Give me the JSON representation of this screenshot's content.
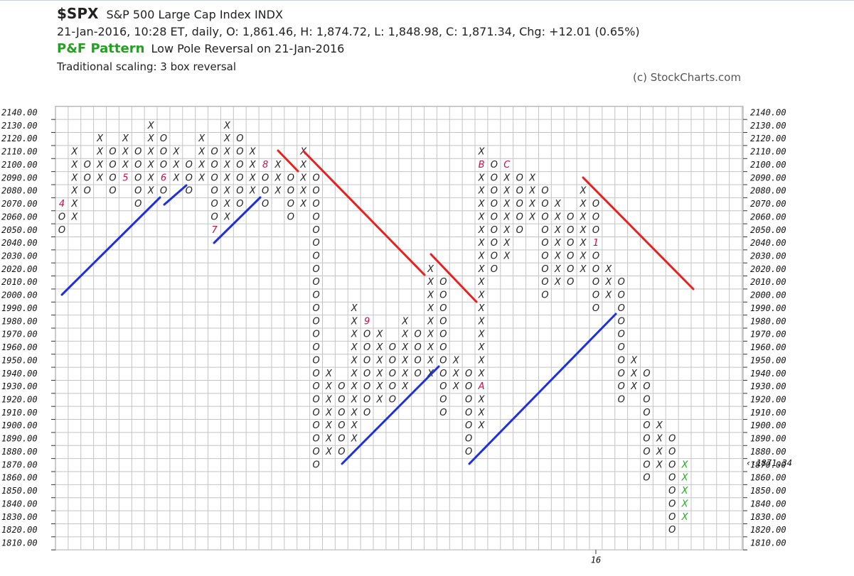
{
  "header": {
    "symbol": "$SPX",
    "name": "S&P 500 Large Cap Index  INDX",
    "quote": "21-Jan-2016, 10:28 ET, daily, O: 1,861.46, H: 1,874.72, L: 1,848.98, C: 1,871.34, Chg: +12.01 (0.65%)",
    "pattern_label": "P&F Pattern",
    "pattern": "Low Pole Reversal on 21-Jan-2016",
    "scaling": "Traditional scaling: 3 box reversal",
    "credit": "(c) StockCharts.com"
  },
  "chart_data": {
    "type": "pointfigure",
    "box_size": 10,
    "x_color": "#222222",
    "o_color": "#222222",
    "marker_color": "#c0104a",
    "last_column_color": "#22aa22",
    "ylim": [
      1810,
      2140
    ],
    "yticks": [
      {
        "value": 2140,
        "label": "2140.00"
      },
      {
        "value": 2130,
        "label": "2130.00"
      },
      {
        "value": 2120,
        "label": "2120.00"
      },
      {
        "value": 2110,
        "label": "2110.00"
      },
      {
        "value": 2100,
        "label": "2100.00"
      },
      {
        "value": 2090,
        "label": "2090.00"
      },
      {
        "value": 2080,
        "label": "2080.00"
      },
      {
        "value": 2070,
        "label": "2070.00"
      },
      {
        "value": 2060,
        "label": "2060.00"
      },
      {
        "value": 2050,
        "label": "2050.00"
      },
      {
        "value": 2040,
        "label": "2040.00"
      },
      {
        "value": 2030,
        "label": "2030.00"
      },
      {
        "value": 2020,
        "label": "2020.00"
      },
      {
        "value": 2010,
        "label": "2010.00"
      },
      {
        "value": 2000,
        "label": "2000.00"
      },
      {
        "value": 1990,
        "label": "1990.00"
      },
      {
        "value": 1980,
        "label": "1980.00"
      },
      {
        "value": 1970,
        "label": "1970.00"
      },
      {
        "value": 1960,
        "label": "1960.00"
      },
      {
        "value": 1950,
        "label": "1950.00"
      },
      {
        "value": 1940,
        "label": "1940.00"
      },
      {
        "value": 1930,
        "label": "1930.00"
      },
      {
        "value": 1920,
        "label": "1920.00"
      },
      {
        "value": 1910,
        "label": "1910.00"
      },
      {
        "value": 1900,
        "label": "1900.00"
      },
      {
        "value": 1890,
        "label": "1890.00"
      },
      {
        "value": 1880,
        "label": "1880.00"
      },
      {
        "value": 1870,
        "label": "1870.00",
        "color": "#c0104a"
      },
      {
        "value": 1860,
        "label": "1860.00"
      },
      {
        "value": 1850,
        "label": "1850.00"
      },
      {
        "value": 1840,
        "label": "1840.00"
      },
      {
        "value": 1830,
        "label": "1830.00"
      },
      {
        "value": 1820,
        "label": "1820.00"
      },
      {
        "value": 1810,
        "label": "1810.00"
      }
    ],
    "last_price": {
      "value": 1871.34,
      "label": "‹‹1871.34"
    },
    "x_labels": [
      {
        "column": 42,
        "label": "16"
      }
    ],
    "columns": [
      {
        "type": "O",
        "low": 2050,
        "high": 2070,
        "marks": [
          {
            "value": 2070,
            "label": "4"
          }
        ]
      },
      {
        "type": "X",
        "low": 2060,
        "high": 2110
      },
      {
        "type": "O",
        "low": 2080,
        "high": 2100
      },
      {
        "type": "X",
        "low": 2090,
        "high": 2120
      },
      {
        "type": "O",
        "low": 2080,
        "high": 2110
      },
      {
        "type": "X",
        "low": 2090,
        "high": 2120,
        "marks": [
          {
            "value": 2090,
            "label": "5"
          }
        ]
      },
      {
        "type": "O",
        "low": 2070,
        "high": 2110
      },
      {
        "type": "X",
        "low": 2080,
        "high": 2130
      },
      {
        "type": "O",
        "low": 2080,
        "high": 2120,
        "marks": [
          {
            "value": 2090,
            "label": "6"
          }
        ]
      },
      {
        "type": "X",
        "low": 2090,
        "high": 2110
      },
      {
        "type": "O",
        "low": 2080,
        "high": 2100
      },
      {
        "type": "X",
        "low": 2090,
        "high": 2120
      },
      {
        "type": "O",
        "low": 2050,
        "high": 2110,
        "marks": [
          {
            "value": 2050,
            "label": "7"
          }
        ]
      },
      {
        "type": "X",
        "low": 2060,
        "high": 2130
      },
      {
        "type": "O",
        "low": 2070,
        "high": 2120
      },
      {
        "type": "X",
        "low": 2080,
        "high": 2110
      },
      {
        "type": "O",
        "low": 2070,
        "high": 2100,
        "marks": [
          {
            "value": 2100,
            "label": "8"
          }
        ]
      },
      {
        "type": "X",
        "low": 2080,
        "high": 2100
      },
      {
        "type": "O",
        "low": 2060,
        "high": 2090
      },
      {
        "type": "X",
        "low": 2070,
        "high": 2110
      },
      {
        "type": "O",
        "low": 1870,
        "high": 2090
      },
      {
        "type": "X",
        "low": 1880,
        "high": 1940
      },
      {
        "type": "O",
        "low": 1880,
        "high": 1930
      },
      {
        "type": "X",
        "low": 1890,
        "high": 1990
      },
      {
        "type": "O",
        "low": 1910,
        "high": 1980,
        "marks": [
          {
            "value": 1980,
            "label": "9"
          }
        ]
      },
      {
        "type": "X",
        "low": 1920,
        "high": 1970
      },
      {
        "type": "O",
        "low": 1920,
        "high": 1960
      },
      {
        "type": "X",
        "low": 1930,
        "high": 1980
      },
      {
        "type": "O",
        "low": 1940,
        "high": 1970
      },
      {
        "type": "X",
        "low": 1940,
        "high": 2020
      },
      {
        "type": "O",
        "low": 1910,
        "high": 2010
      },
      {
        "type": "X",
        "low": 1930,
        "high": 1950
      },
      {
        "type": "O",
        "low": 1880,
        "high": 1940
      },
      {
        "type": "X",
        "low": 1900,
        "high": 2110,
        "marks": [
          {
            "value": 2100,
            "label": "B"
          },
          {
            "value": 1930,
            "label": "A"
          }
        ]
      },
      {
        "type": "O",
        "low": 2020,
        "high": 2100
      },
      {
        "type": "X",
        "low": 2030,
        "high": 2100,
        "marks": [
          {
            "value": 2100,
            "label": "C"
          }
        ]
      },
      {
        "type": "O",
        "low": 2050,
        "high": 2090
      },
      {
        "type": "X",
        "low": 2060,
        "high": 2090
      },
      {
        "type": "O",
        "low": 2000,
        "high": 2080
      },
      {
        "type": "X",
        "low": 2010,
        "high": 2070
      },
      {
        "type": "O",
        "low": 2010,
        "high": 2060
      },
      {
        "type": "X",
        "low": 2020,
        "high": 2080
      },
      {
        "type": "O",
        "low": 1990,
        "high": 2070,
        "marks": [
          {
            "value": 2040,
            "label": "1"
          }
        ]
      },
      {
        "type": "X",
        "low": 2000,
        "high": 2020
      },
      {
        "type": "O",
        "low": 1920,
        "high": 2010
      },
      {
        "type": "X",
        "low": 1930,
        "high": 1950
      },
      {
        "type": "O",
        "low": 1860,
        "high": 1940
      },
      {
        "type": "X",
        "low": 1870,
        "high": 1900
      },
      {
        "type": "O",
        "low": 1820,
        "high": 1890
      },
      {
        "type": "X",
        "low": 1830,
        "high": 1870
      }
    ]
  }
}
